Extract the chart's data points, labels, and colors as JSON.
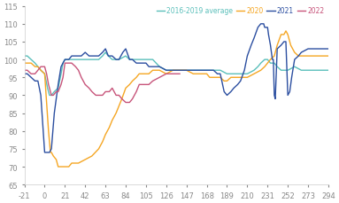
{
  "series": {
    "avg": {
      "label": "2016-2019 average",
      "color": "#5abfba",
      "lw": 1.0
    },
    "y2020": {
      "label": "2020",
      "color": "#f5a623",
      "lw": 1.0
    },
    "y2021": {
      "label": "2021",
      "color": "#2b4ea0",
      "lw": 1.0
    },
    "y2022": {
      "label": "2022",
      "color": "#c7547a",
      "lw": 1.0
    }
  },
  "xlim": [
    -21,
    294
  ],
  "ylim": [
    65,
    115
  ],
  "xticks": [
    -21,
    0,
    21,
    42,
    63,
    84,
    105,
    126,
    147,
    168,
    189,
    210,
    231,
    252,
    273,
    294
  ],
  "yticks": [
    65,
    70,
    75,
    80,
    85,
    90,
    95,
    100,
    105,
    110,
    115
  ],
  "background_color": "#ffffff",
  "spine_color": "#cccccc",
  "tick_color": "#888888"
}
